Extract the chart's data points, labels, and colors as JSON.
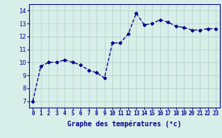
{
  "x": [
    0,
    1,
    2,
    3,
    4,
    5,
    6,
    7,
    8,
    9,
    10,
    11,
    12,
    13,
    14,
    15,
    16,
    17,
    18,
    19,
    20,
    21,
    22,
    23
  ],
  "y": [
    7.0,
    9.7,
    10.0,
    10.0,
    10.2,
    10.0,
    9.8,
    9.4,
    9.2,
    8.8,
    11.5,
    11.5,
    12.2,
    13.8,
    12.9,
    13.0,
    13.3,
    13.1,
    12.8,
    12.7,
    12.5,
    12.5,
    12.6,
    12.6
  ],
  "line_color": "#00008b",
  "marker": "D",
  "marker_size": 2.2,
  "line_width": 1.0,
  "xlabel": "Graphe des températures (°c)",
  "xlabel_fontsize": 7,
  "yticks": [
    7,
    8,
    9,
    10,
    11,
    12,
    13,
    14
  ],
  "xlim": [
    -0.5,
    23.5
  ],
  "ylim": [
    6.5,
    14.5
  ],
  "background_color": "#d8eee8",
  "grid_color": "#b8d8d0",
  "tick_color": "#00008b",
  "label_color": "#00008b",
  "tick_fontsize": 5.5,
  "ytick_fontsize": 6.0
}
